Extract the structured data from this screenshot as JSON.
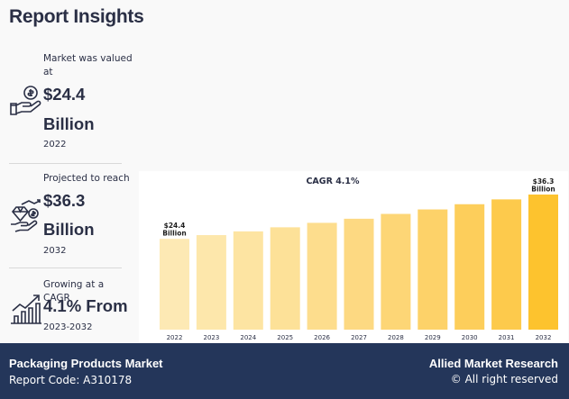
{
  "header": {
    "title": "Report Insights"
  },
  "stats": [
    {
      "icon": "money-hand-icon",
      "label": "Market was valued at",
      "value_line1": "$24.4",
      "value_line2": "Billion",
      "year": "2022"
    },
    {
      "icon": "diamond-growth-icon",
      "label": "Projected to reach",
      "value_line1": "$36.3",
      "value_line2": "Billion",
      "year": "2032"
    },
    {
      "icon": "growth-chart-icon",
      "label": "Growing at a CAGR",
      "value_line1": "4.1% From",
      "year": "2023-2032"
    }
  ],
  "chart_data": {
    "type": "bar",
    "title": "CAGR 4.1%",
    "categories": [
      "2022",
      "2023",
      "2024",
      "2025",
      "2026",
      "2027",
      "2028",
      "2029",
      "2030",
      "2031",
      "2032"
    ],
    "values": [
      24.4,
      25.4,
      26.4,
      27.5,
      28.7,
      29.8,
      31.1,
      32.3,
      33.7,
      35.0,
      36.3
    ],
    "ylim": [
      0,
      40
    ],
    "annotations": [
      {
        "index": 0,
        "line1": "$24.4",
        "line2": "Billion"
      },
      {
        "index": 10,
        "line1": "$36.3",
        "line2": "Billion"
      }
    ],
    "colors": [
      "#fde9b4",
      "#fde7ab",
      "#fde4a2",
      "#fde198",
      "#fddd8d",
      "#fdd982",
      "#fdd676",
      "#fdd269",
      "#fdce5b",
      "#fdca4c",
      "#fdc32e"
    ]
  },
  "footer": {
    "report_name": "Packaging Products Market",
    "report_code": "Report Code: A310178",
    "brand": "Allied Market Research",
    "rights": "© All right reserved"
  }
}
